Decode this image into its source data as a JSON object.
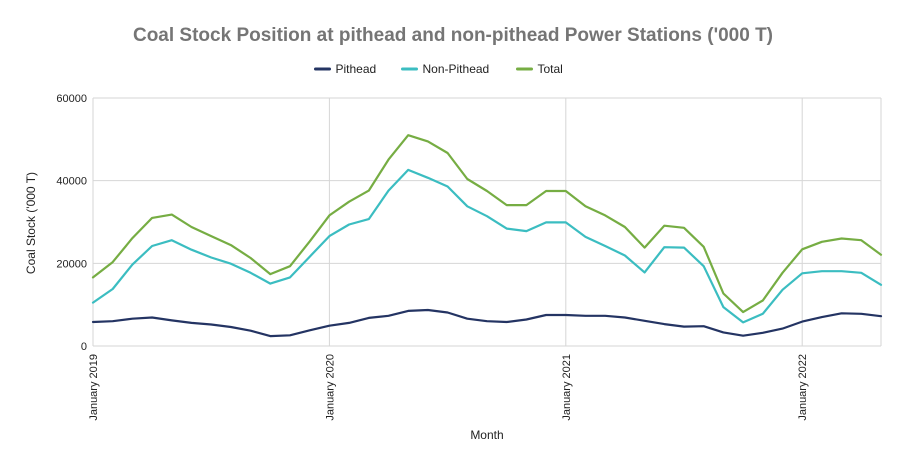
{
  "chart_data": {
    "type": "line",
    "title": "Coal Stock Position at pithead and non-pithead Power Stations ('000 T)",
    "xlabel": "Month",
    "ylabel": "Coal Stock ('000 T)",
    "ylim": [
      0,
      60000
    ],
    "yticks": [
      "0",
      "20000",
      "40000",
      "60000"
    ],
    "x_start": "2019-01",
    "x_end": "2022-05",
    "x": [
      "2019-01",
      "2019-02",
      "2019-03",
      "2019-04",
      "2019-05",
      "2019-06",
      "2019-07",
      "2019-08",
      "2019-09",
      "2019-10",
      "2019-11",
      "2019-12",
      "2020-01",
      "2020-02",
      "2020-03",
      "2020-04",
      "2020-05",
      "2020-06",
      "2020-07",
      "2020-08",
      "2020-09",
      "2020-10",
      "2020-11",
      "2020-12",
      "2021-01",
      "2021-02",
      "2021-03",
      "2021-04",
      "2021-05",
      "2021-06",
      "2021-07",
      "2021-08",
      "2021-09",
      "2021-10",
      "2021-11",
      "2021-12",
      "2022-01",
      "2022-02",
      "2022-03",
      "2022-04",
      "2022-05"
    ],
    "xticks": [
      {
        "x": "2019-01",
        "label": "January 2019"
      },
      {
        "x": "2020-01",
        "label": "January 2020"
      },
      {
        "x": "2021-01",
        "label": "January 2021"
      },
      {
        "x": "2022-01",
        "label": "January 2022"
      }
    ],
    "grid": true,
    "legend": "top",
    "series": [
      {
        "name": "Pithead",
        "color": "#243463",
        "values": [
          5800,
          6000,
          6600,
          6900,
          6200,
          5600,
          5200,
          4600,
          3700,
          2400,
          2600,
          3800,
          4900,
          5600,
          6800,
          7300,
          8500,
          8700,
          8100,
          6600,
          6000,
          5800,
          6400,
          7500,
          7500,
          7300,
          7300,
          6900,
          6100,
          5300,
          4700,
          4800,
          3300,
          2500,
          3200,
          4200,
          5900,
          7000,
          7900,
          7800,
          7200
        ]
      },
      {
        "name": "Non-Pithead",
        "color": "#3bbdc1",
        "values": [
          10500,
          13800,
          19700,
          24200,
          25600,
          23300,
          21400,
          19900,
          17700,
          15100,
          16600,
          21600,
          26600,
          29400,
          30700,
          37600,
          42600,
          40700,
          38600,
          33800,
          31400,
          28400,
          27800,
          29900,
          29900,
          26400,
          24200,
          21900,
          17800,
          23900,
          23800,
          19300,
          9400,
          5700,
          7800,
          13600,
          17600,
          18100,
          18100,
          17700,
          14800
        ]
      },
      {
        "name": "Total",
        "color": "#76ad43",
        "values": [
          16600,
          20300,
          26100,
          31000,
          31800,
          28800,
          26600,
          24400,
          21300,
          17400,
          19300,
          25300,
          31600,
          34900,
          37600,
          45100,
          51000,
          49500,
          46700,
          40400,
          37500,
          34100,
          34100,
          37500,
          37500,
          33800,
          31600,
          28800,
          23800,
          29100,
          28600,
          24000,
          12700,
          8200,
          11000,
          17700,
          23400,
          25200,
          26000,
          25600,
          22100
        ]
      }
    ]
  }
}
